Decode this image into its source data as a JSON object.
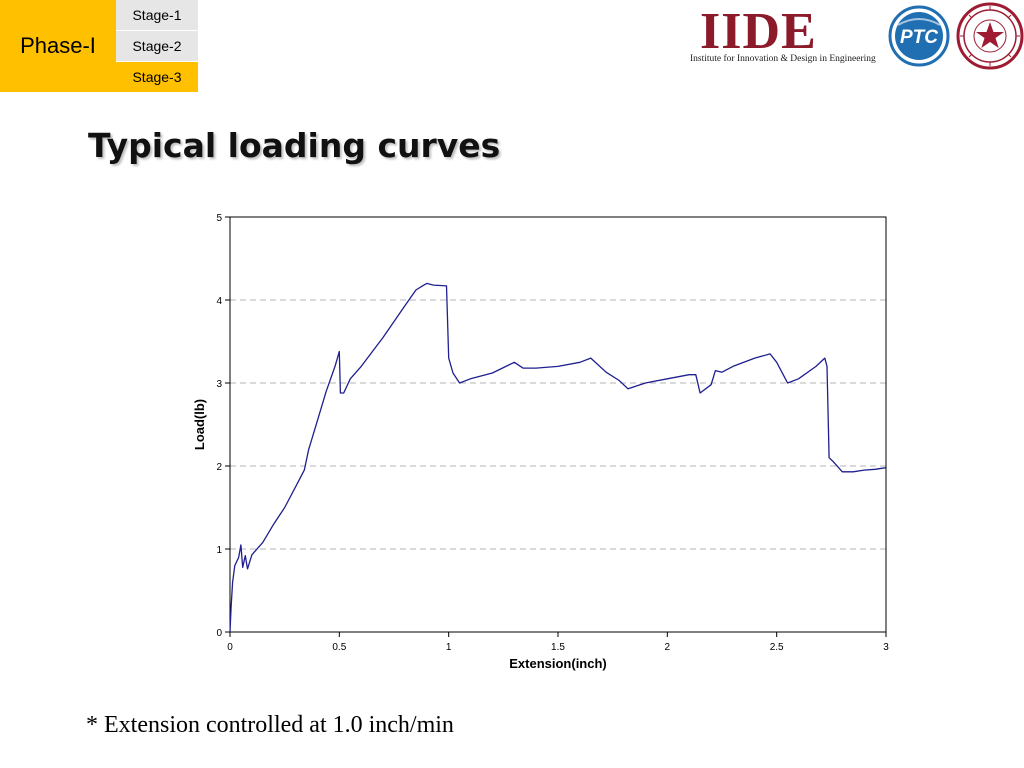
{
  "header": {
    "phase_label": "Phase-I",
    "stages": [
      "Stage-1",
      "Stage-2",
      "Stage-3"
    ],
    "active_stage": "Stage-3",
    "accent_color": "#FFC000",
    "inactive_stage_color": "#E7E6E6"
  },
  "logos": {
    "iide": {
      "letters": "IIDE",
      "tagline": "Institute for Innovation & Design in Engineering",
      "letter_colors": [
        "#8B1A2B",
        "#8B1A2B",
        "#8B1A2B",
        "#8B1A2B"
      ]
    },
    "ptc": {
      "text": "PTC",
      "color": "#1F6FB2"
    },
    "seal": {
      "icon": "university-seal-icon",
      "color": "#9E1B32"
    }
  },
  "slide": {
    "title": "Typical loading curves",
    "footnote": "* Extension controlled at 1.0 inch/min"
  },
  "chart_data": {
    "type": "line",
    "title": "",
    "xlabel": "Extension(inch)",
    "ylabel": "Load(lb)",
    "xlim": [
      0,
      3
    ],
    "ylim": [
      0,
      5
    ],
    "x_ticks": [
      "0",
      "0.5",
      "1",
      "1.5",
      "2",
      "2.5",
      "3"
    ],
    "y_ticks": [
      "0",
      "1",
      "2",
      "3",
      "4",
      "5"
    ],
    "grid": "horizontal-dashed",
    "line_color": "#1F1F8F",
    "series": [
      {
        "points": [
          [
            0,
            0
          ],
          [
            0.005,
            0.3
          ],
          [
            0.012,
            0.6
          ],
          [
            0.022,
            0.8
          ],
          [
            0.04,
            0.9
          ],
          [
            0.05,
            1.05
          ],
          [
            0.058,
            0.78
          ],
          [
            0.07,
            0.92
          ],
          [
            0.08,
            0.76
          ],
          [
            0.1,
            0.93
          ],
          [
            0.15,
            1.08
          ],
          [
            0.2,
            1.3
          ],
          [
            0.25,
            1.5
          ],
          [
            0.3,
            1.75
          ],
          [
            0.34,
            1.95
          ],
          [
            0.36,
            2.2
          ],
          [
            0.4,
            2.55
          ],
          [
            0.44,
            2.9
          ],
          [
            0.48,
            3.2
          ],
          [
            0.5,
            3.38
          ],
          [
            0.505,
            2.88
          ],
          [
            0.52,
            2.88
          ],
          [
            0.55,
            3.05
          ],
          [
            0.6,
            3.2
          ],
          [
            0.7,
            3.55
          ],
          [
            0.8,
            3.93
          ],
          [
            0.85,
            4.12
          ],
          [
            0.88,
            4.17
          ],
          [
            0.9,
            4.2
          ],
          [
            0.93,
            4.18
          ],
          [
            0.99,
            4.17
          ],
          [
            1.0,
            3.3
          ],
          [
            1.02,
            3.12
          ],
          [
            1.05,
            3.0
          ],
          [
            1.1,
            3.05
          ],
          [
            1.2,
            3.12
          ],
          [
            1.3,
            3.25
          ],
          [
            1.34,
            3.18
          ],
          [
            1.4,
            3.18
          ],
          [
            1.5,
            3.2
          ],
          [
            1.6,
            3.25
          ],
          [
            1.65,
            3.3
          ],
          [
            1.72,
            3.13
          ],
          [
            1.78,
            3.03
          ],
          [
            1.82,
            2.93
          ],
          [
            1.9,
            3.0
          ],
          [
            2.0,
            3.05
          ],
          [
            2.1,
            3.1
          ],
          [
            2.13,
            3.1
          ],
          [
            2.15,
            2.88
          ],
          [
            2.2,
            2.98
          ],
          [
            2.22,
            3.15
          ],
          [
            2.25,
            3.13
          ],
          [
            2.3,
            3.2
          ],
          [
            2.4,
            3.3
          ],
          [
            2.47,
            3.35
          ],
          [
            2.5,
            3.25
          ],
          [
            2.55,
            3.0
          ],
          [
            2.6,
            3.05
          ],
          [
            2.68,
            3.2
          ],
          [
            2.72,
            3.3
          ],
          [
            2.73,
            3.2
          ],
          [
            2.74,
            2.1
          ],
          [
            2.76,
            2.05
          ],
          [
            2.8,
            1.93
          ],
          [
            2.85,
            1.93
          ],
          [
            2.9,
            1.95
          ],
          [
            2.95,
            1.96
          ],
          [
            3.0,
            1.98
          ]
        ]
      }
    ]
  }
}
